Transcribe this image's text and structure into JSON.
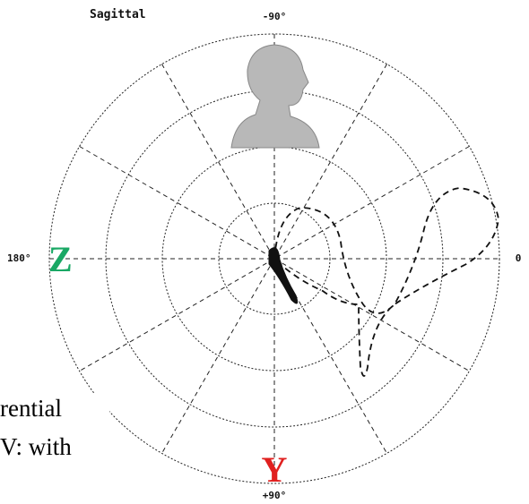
{
  "title": "Sagittal",
  "labels": {
    "top": "-90°",
    "left": "180°",
    "right": "0",
    "bottom": "+90°"
  },
  "axes": {
    "z": "Z",
    "y": "Y"
  },
  "caption_fragments": [
    "rential",
    "V: with"
  ]
}
